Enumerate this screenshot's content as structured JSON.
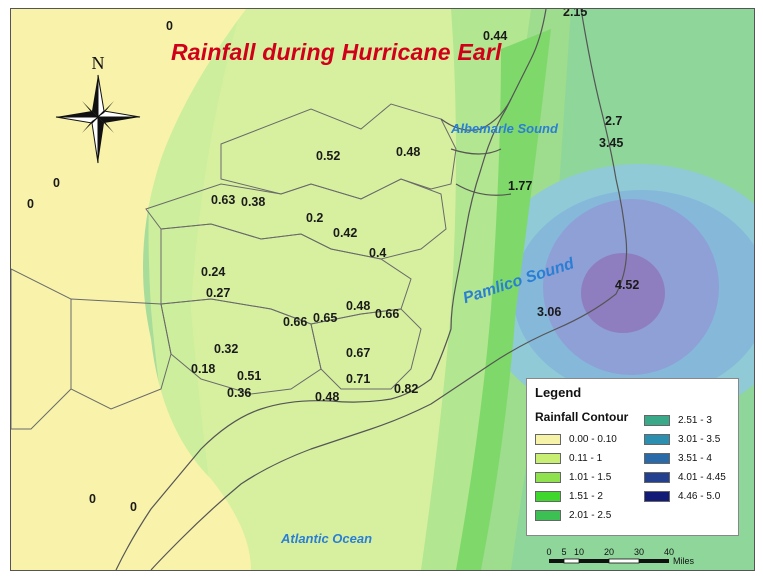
{
  "map": {
    "title": "Rainfall during Hurricane Earl",
    "compass_letter": "N"
  },
  "water_bodies": [
    {
      "name": "Albemarle Sound"
    },
    {
      "name": "Pamlico Sound"
    },
    {
      "name": "Atlantic Ocean"
    }
  ],
  "rainfall_values": [
    "0",
    "2.15",
    "0.44",
    "2.7",
    "3.45",
    "0.52",
    "0.48",
    "1.77",
    "0",
    "0",
    "0.63",
    "0.38",
    "0.2",
    "0.42",
    "0.4",
    "0.24",
    "0.27",
    "0.48",
    "0.66",
    "0.65",
    "0.66",
    "4.52",
    "3.06",
    "0.32",
    "0.18",
    "0.51",
    "0.67",
    "0.36",
    "0.71",
    "0.48",
    "0.82",
    "0",
    "0"
  ],
  "legend": {
    "title": "Legend",
    "subtitle": "Rainfall Contour",
    "items": [
      {
        "label": "0.00 - 0.10",
        "color": "#f6f2a8"
      },
      {
        "label": "0.11 - 1",
        "color": "#c8ee74"
      },
      {
        "label": "1.01 - 1.5",
        "color": "#8fe24e"
      },
      {
        "label": "1.51 - 2",
        "color": "#3fd62e"
      },
      {
        "label": "2.01 - 2.5",
        "color": "#3cc054"
      },
      {
        "label": "2.51 - 3",
        "color": "#3aa98a"
      },
      {
        "label": "3.01 - 3.5",
        "color": "#2d8fb0"
      },
      {
        "label": "3.51 - 4",
        "color": "#2a6aa8"
      },
      {
        "label": "4.01 - 4.45",
        "color": "#23408e"
      },
      {
        "label": "4.46 - 5.0",
        "color": "#121c76"
      }
    ]
  },
  "scale_bar": {
    "ticks": [
      "0",
      "5",
      "10",
      "20",
      "30",
      "40"
    ],
    "unit": "Miles"
  }
}
